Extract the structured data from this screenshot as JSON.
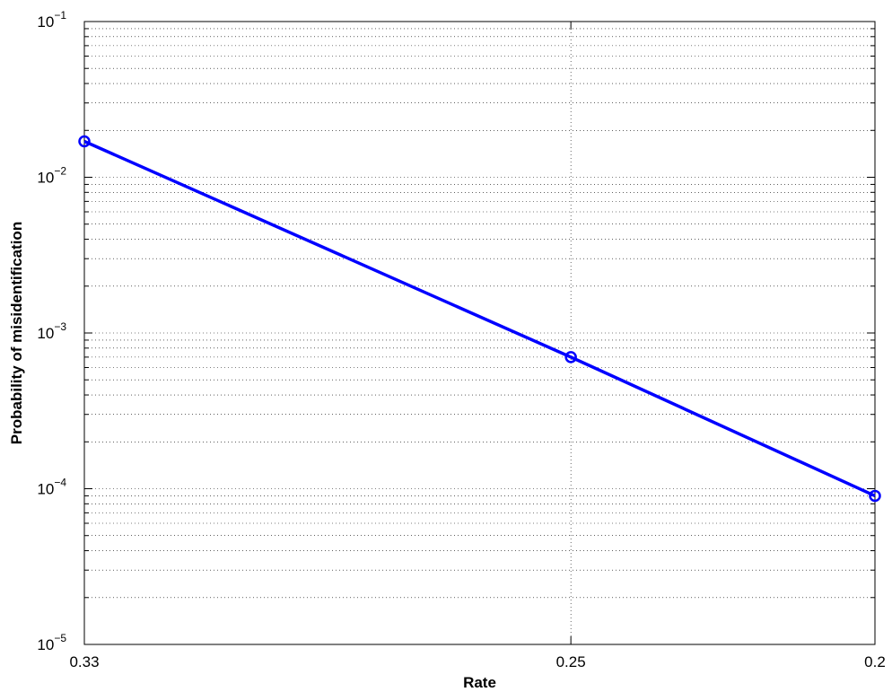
{
  "chart_data": {
    "type": "line",
    "title": "",
    "xlabel": "Rate",
    "ylabel": "Probability of misidentification",
    "x_tick_labels": [
      "0.33",
      "0.25",
      "0.2"
    ],
    "x": [
      0.33,
      0.25,
      0.2
    ],
    "xlim": [
      0.33,
      0.2
    ],
    "ylim": [
      1e-05,
      0.1
    ],
    "y_scale": "log",
    "y_tick_labels": [
      {
        "base": "10",
        "exp": "−1"
      },
      {
        "base": "10",
        "exp": "−2"
      },
      {
        "base": "10",
        "exp": "−3"
      },
      {
        "base": "10",
        "exp": "−4"
      },
      {
        "base": "10",
        "exp": "−5"
      }
    ],
    "grid": true,
    "series": [
      {
        "values": [
          0.017,
          0.0007,
          9e-05
        ],
        "color": "#0000ff",
        "marker": "circle"
      }
    ]
  }
}
